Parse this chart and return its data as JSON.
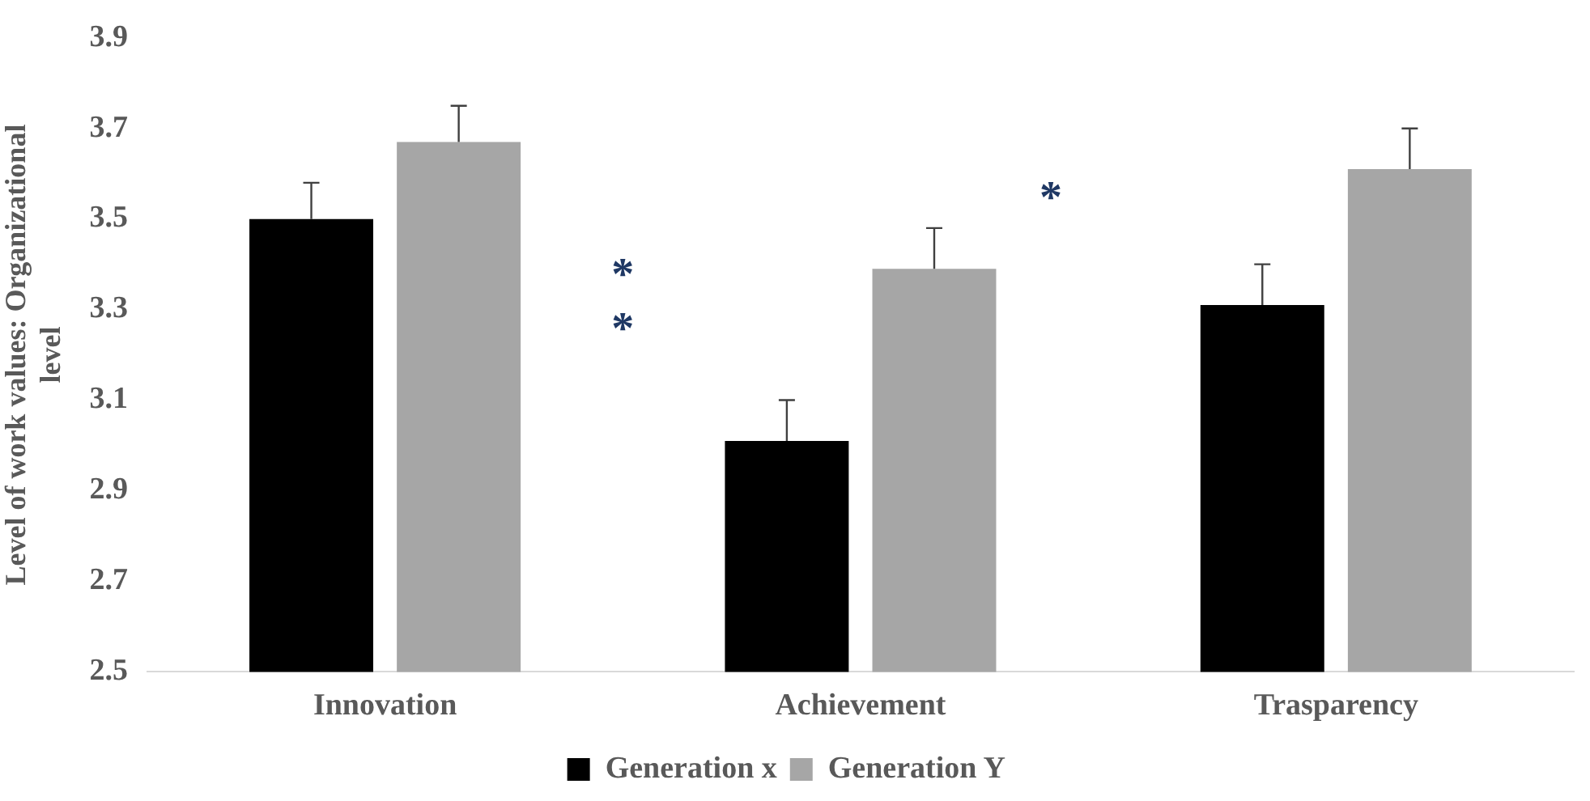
{
  "chart_data": {
    "type": "bar",
    "ylabel": "Level of work values: Organizational level",
    "categories": [
      "Innovation",
      "Achievement",
      "Trasparency"
    ],
    "series": [
      {
        "name": "Generation x",
        "color": "#000000",
        "values": [
          3.5,
          3.01,
          3.31
        ],
        "errors": [
          [
            3.5,
            3.58
          ],
          [
            3.01,
            3.1
          ],
          [
            3.31,
            3.4
          ]
        ]
      },
      {
        "name": "Generation Y",
        "color": "#a6a6a6",
        "values": [
          3.67,
          3.39,
          3.61
        ],
        "errors": [
          [
            3.67,
            3.75
          ],
          [
            3.39,
            3.48
          ],
          [
            3.61,
            3.7
          ]
        ]
      }
    ],
    "ylim": [
      2.5,
      3.9
    ],
    "yticks": [
      2.5,
      2.7,
      2.9,
      3.1,
      3.3,
      3.5,
      3.7,
      3.9
    ],
    "grid": false,
    "legend": "bottom",
    "annotations": [
      "*",
      "*",
      "*"
    ]
  }
}
